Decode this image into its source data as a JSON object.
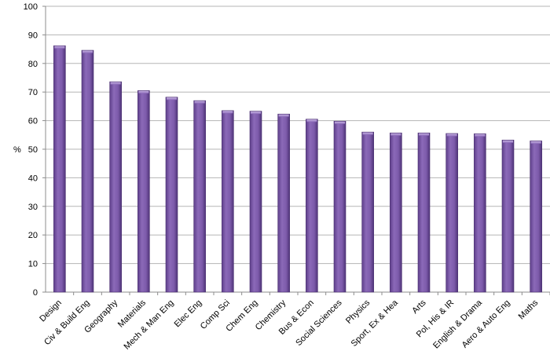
{
  "chart_data": {
    "type": "bar",
    "title": "",
    "xlabel": "",
    "ylabel": "%",
    "ylim": [
      0,
      100
    ],
    "yticks": [
      0,
      10,
      20,
      30,
      40,
      50,
      60,
      70,
      80,
      90,
      100
    ],
    "grid": true,
    "bar_color": "#7d5bab",
    "categories": [
      "Design",
      "Civ & Build Eng",
      "Geography",
      "Materials",
      "Mech & Man Eng",
      "Elec Eng",
      "Comp Sci",
      "Chem Eng",
      "Chemistry",
      "Bus & Econ",
      "Social Sciences",
      "Physics",
      "Sport, Ex & Hea",
      "Arts",
      "Pol, His & IR",
      "English & Drama",
      "Aero & Auto Eng",
      "Maths"
    ],
    "values": [
      86.2,
      84.6,
      73.6,
      70.5,
      68.2,
      67.0,
      63.5,
      63.3,
      62.3,
      60.5,
      59.8,
      56.0,
      55.7,
      55.7,
      55.5,
      55.4,
      53.2,
      52.9
    ]
  }
}
